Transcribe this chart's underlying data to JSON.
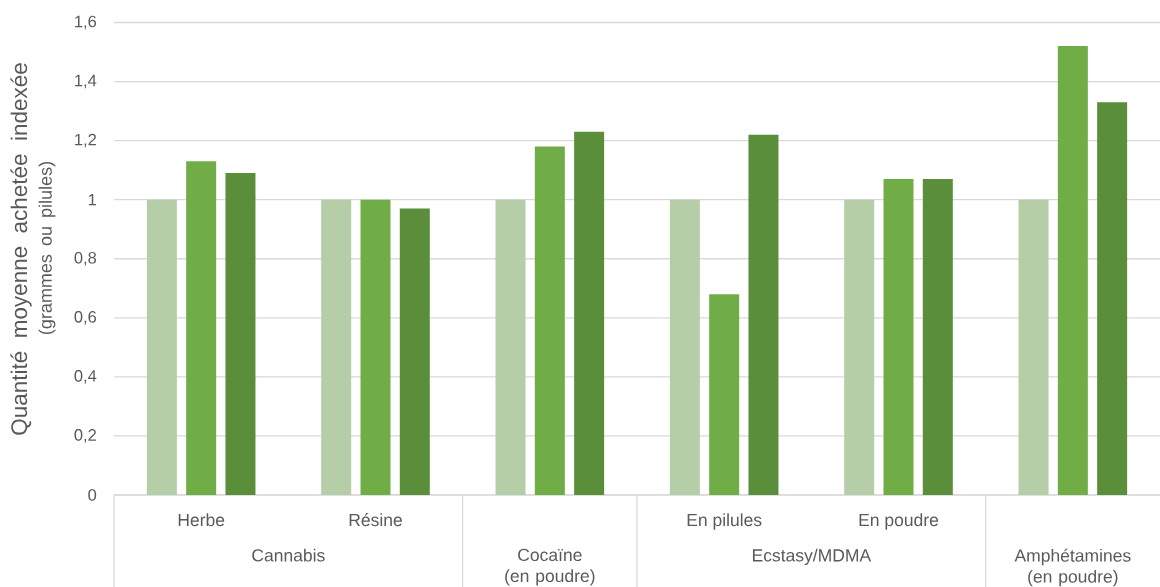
{
  "chart_data": {
    "type": "bar",
    "ylabel": "Quantité moyenne achetée indexée",
    "annotations": [
      "(grammes ou pilules)",
      "Cannabis",
      "Cocaïne (en poudre)",
      "Ecstasy/MDMA",
      "Amphétamines (en poudre)"
    ],
    "categories": [
      "Herbe",
      "Résine",
      null,
      "En pilules",
      "En poudre",
      null
    ],
    "series": [
      {
        "color": "#b5cea7",
        "values": [
          1,
          1,
          1,
          1,
          1,
          1
        ]
      },
      {
        "color": "#70ad47",
        "values": [
          1.13,
          1.0,
          1.18,
          0.68,
          1.07,
          1.52
        ]
      },
      {
        "color": "#5b8e3a",
        "values": [
          1.09,
          0.97,
          1.23,
          1.22,
          1.07,
          1.33
        ]
      }
    ],
    "ylim": [
      0,
      1.6
    ],
    "yticks": [
      0,
      {
        "value": 0.2,
        "label": "0,2"
      },
      {
        "value": 0.4,
        "label": "0,4"
      },
      {
        "value": 0.6,
        "label": "0,6"
      },
      {
        "value": 0.8,
        "label": "0,8"
      },
      1,
      {
        "value": 1.2,
        "label": "1,2"
      },
      {
        "value": 1.4,
        "label": "1,4"
      },
      {
        "value": 1.6,
        "label": "1,6"
      }
    ],
    "grid": "y"
  }
}
